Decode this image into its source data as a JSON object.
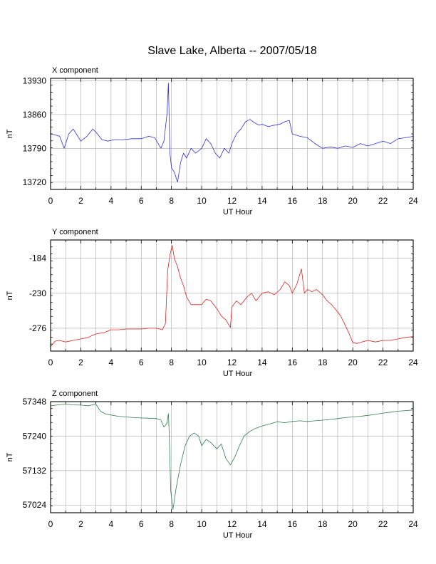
{
  "page": {
    "title": "Slave Lake, Alberta -- 2007/05/18"
  },
  "chart_data": [
    {
      "type": "line",
      "title": "X component",
      "xlabel": "UT Hour",
      "ylabel": "nT",
      "xlim": [
        0,
        24
      ],
      "ylim": [
        13705,
        13935
      ],
      "xticks": [
        0,
        2,
        4,
        6,
        8,
        10,
        12,
        14,
        16,
        18,
        20,
        22,
        24
      ],
      "yticks": [
        13720,
        13790,
        13860,
        13930
      ],
      "grid": true,
      "color": "#3030d8",
      "series": [
        {
          "x": [
            0,
            0.3,
            0.6,
            0.9,
            1.2,
            1.5,
            1.8,
            2.0,
            2.4,
            2.8,
            3.1,
            3.4,
            3.8,
            4.2,
            4.8,
            5.4,
            6.0,
            6.5,
            6.9,
            7.3,
            7.5,
            7.7,
            7.8,
            7.9,
            8.0,
            8.2,
            8.4,
            8.6,
            8.8,
            9.0,
            9.3,
            9.6,
            10.0,
            10.3,
            10.6,
            10.9,
            11.2,
            11.5,
            11.8,
            12.0,
            12.3,
            12.6,
            12.9,
            13.2,
            13.5,
            13.8,
            14.0,
            14.4,
            14.8,
            15.2,
            15.5,
            15.8,
            16.0,
            16.5,
            17.0,
            17.5,
            18.0,
            18.5,
            19.0,
            19.5,
            20.0,
            20.5,
            21.0,
            21.5,
            22.0,
            22.5,
            23.0,
            23.5,
            24.0
          ],
          "y": [
            13820,
            13818,
            13815,
            13790,
            13820,
            13830,
            13815,
            13805,
            13815,
            13830,
            13820,
            13808,
            13805,
            13808,
            13808,
            13810,
            13810,
            13815,
            13812,
            13790,
            13805,
            13860,
            13925,
            13780,
            13750,
            13740,
            13720,
            13760,
            13780,
            13770,
            13790,
            13780,
            13790,
            13810,
            13800,
            13780,
            13770,
            13790,
            13780,
            13800,
            13820,
            13830,
            13845,
            13850,
            13843,
            13838,
            13840,
            13835,
            13838,
            13840,
            13845,
            13848,
            13820,
            13815,
            13812,
            13800,
            13790,
            13793,
            13790,
            13795,
            13792,
            13800,
            13795,
            13800,
            13805,
            13800,
            13810,
            13812,
            13815
          ]
        }
      ]
    },
    {
      "type": "line",
      "title": "Y component",
      "xlabel": "UT Hour",
      "ylabel": "nT",
      "xlim": [
        0,
        24
      ],
      "ylim": [
        -306,
        -160
      ],
      "xticks": [
        0,
        2,
        4,
        6,
        8,
        10,
        12,
        14,
        16,
        18,
        20,
        22,
        24
      ],
      "yticks": [
        -184,
        -230,
        -276
      ],
      "grid": true,
      "color": "#e02020",
      "series": [
        {
          "x": [
            0,
            0.3,
            0.6,
            1.0,
            1.5,
            2.0,
            2.5,
            2.8,
            3.1,
            3.5,
            4.0,
            4.5,
            5.0,
            5.5,
            6.0,
            6.5,
            7.0,
            7.4,
            7.6,
            7.75,
            7.9,
            8.05,
            8.2,
            8.4,
            8.6,
            8.8,
            9.0,
            9.3,
            9.6,
            10.0,
            10.3,
            10.6,
            11.0,
            11.3,
            11.6,
            11.9,
            12.0,
            12.3,
            12.6,
            13.0,
            13.3,
            13.6,
            14.0,
            14.4,
            14.8,
            15.2,
            15.5,
            15.8,
            16.0,
            16.3,
            16.6,
            16.8,
            17.0,
            17.3,
            17.6,
            18.0,
            18.3,
            18.6,
            18.9,
            19.2,
            19.5,
            19.8,
            20.0,
            20.3,
            20.6,
            21.0,
            21.5,
            22.0,
            22.5,
            23.0,
            23.5,
            24.0
          ],
          "y": [
            -300,
            -293,
            -292,
            -294,
            -292,
            -290,
            -288,
            -285,
            -283,
            -282,
            -278,
            -278,
            -277,
            -277,
            -277,
            -276,
            -276,
            -278,
            -270,
            -200,
            -180,
            -167,
            -185,
            -195,
            -210,
            -220,
            -235,
            -245,
            -245,
            -245,
            -238,
            -240,
            -250,
            -260,
            -265,
            -275,
            -248,
            -240,
            -245,
            -235,
            -230,
            -240,
            -230,
            -228,
            -232,
            -225,
            -215,
            -220,
            -230,
            -218,
            -198,
            -230,
            -225,
            -228,
            -225,
            -232,
            -240,
            -245,
            -252,
            -260,
            -272,
            -285,
            -295,
            -296,
            -294,
            -292,
            -294,
            -292,
            -292,
            -290,
            -288,
            -287
          ]
        }
      ]
    },
    {
      "type": "line",
      "title": "Z component",
      "xlabel": "UT Hour",
      "ylabel": "nT",
      "xlim": [
        0,
        24
      ],
      "ylim": [
        57000,
        57348
      ],
      "xticks": [
        0,
        2,
        4,
        6,
        8,
        10,
        12,
        14,
        16,
        18,
        20,
        22,
        24
      ],
      "yticks": [
        57024,
        57132,
        57240,
        57348
      ],
      "grid": true,
      "color": "#2e7d4f",
      "series": [
        {
          "x": [
            0,
            0.5,
            1.0,
            1.5,
            2.0,
            2.5,
            3.0,
            3.3,
            3.6,
            4.0,
            4.5,
            5.0,
            5.5,
            6.0,
            6.5,
            7.0,
            7.3,
            7.5,
            7.7,
            7.8,
            7.85,
            7.95,
            8.1,
            8.3,
            8.6,
            8.9,
            9.2,
            9.5,
            9.8,
            10.0,
            10.3,
            10.6,
            11.0,
            11.3,
            11.6,
            11.9,
            12.2,
            12.5,
            12.8,
            13.2,
            13.6,
            14.0,
            14.5,
            15.0,
            15.5,
            16.0,
            16.5,
            17.0,
            17.5,
            18.0,
            18.5,
            19.0,
            19.5,
            20.0,
            20.5,
            21.0,
            21.5,
            22.0,
            22.5,
            23.0,
            23.5,
            24.0
          ],
          "y": [
            57335,
            57338,
            57340,
            57338,
            57337,
            57335,
            57340,
            57318,
            57310,
            57306,
            57302,
            57300,
            57298,
            57297,
            57296,
            57295,
            57290,
            57268,
            57280,
            57310,
            57250,
            57070,
            57010,
            57075,
            57150,
            57210,
            57240,
            57250,
            57240,
            57210,
            57230,
            57220,
            57200,
            57215,
            57170,
            57150,
            57175,
            57210,
            57240,
            57255,
            57265,
            57272,
            57278,
            57285,
            57282,
            57286,
            57288,
            57286,
            57288,
            57290,
            57292,
            57295,
            57298,
            57300,
            57302,
            57305,
            57308,
            57312,
            57315,
            57318,
            57320,
            57322
          ]
        }
      ]
    }
  ]
}
